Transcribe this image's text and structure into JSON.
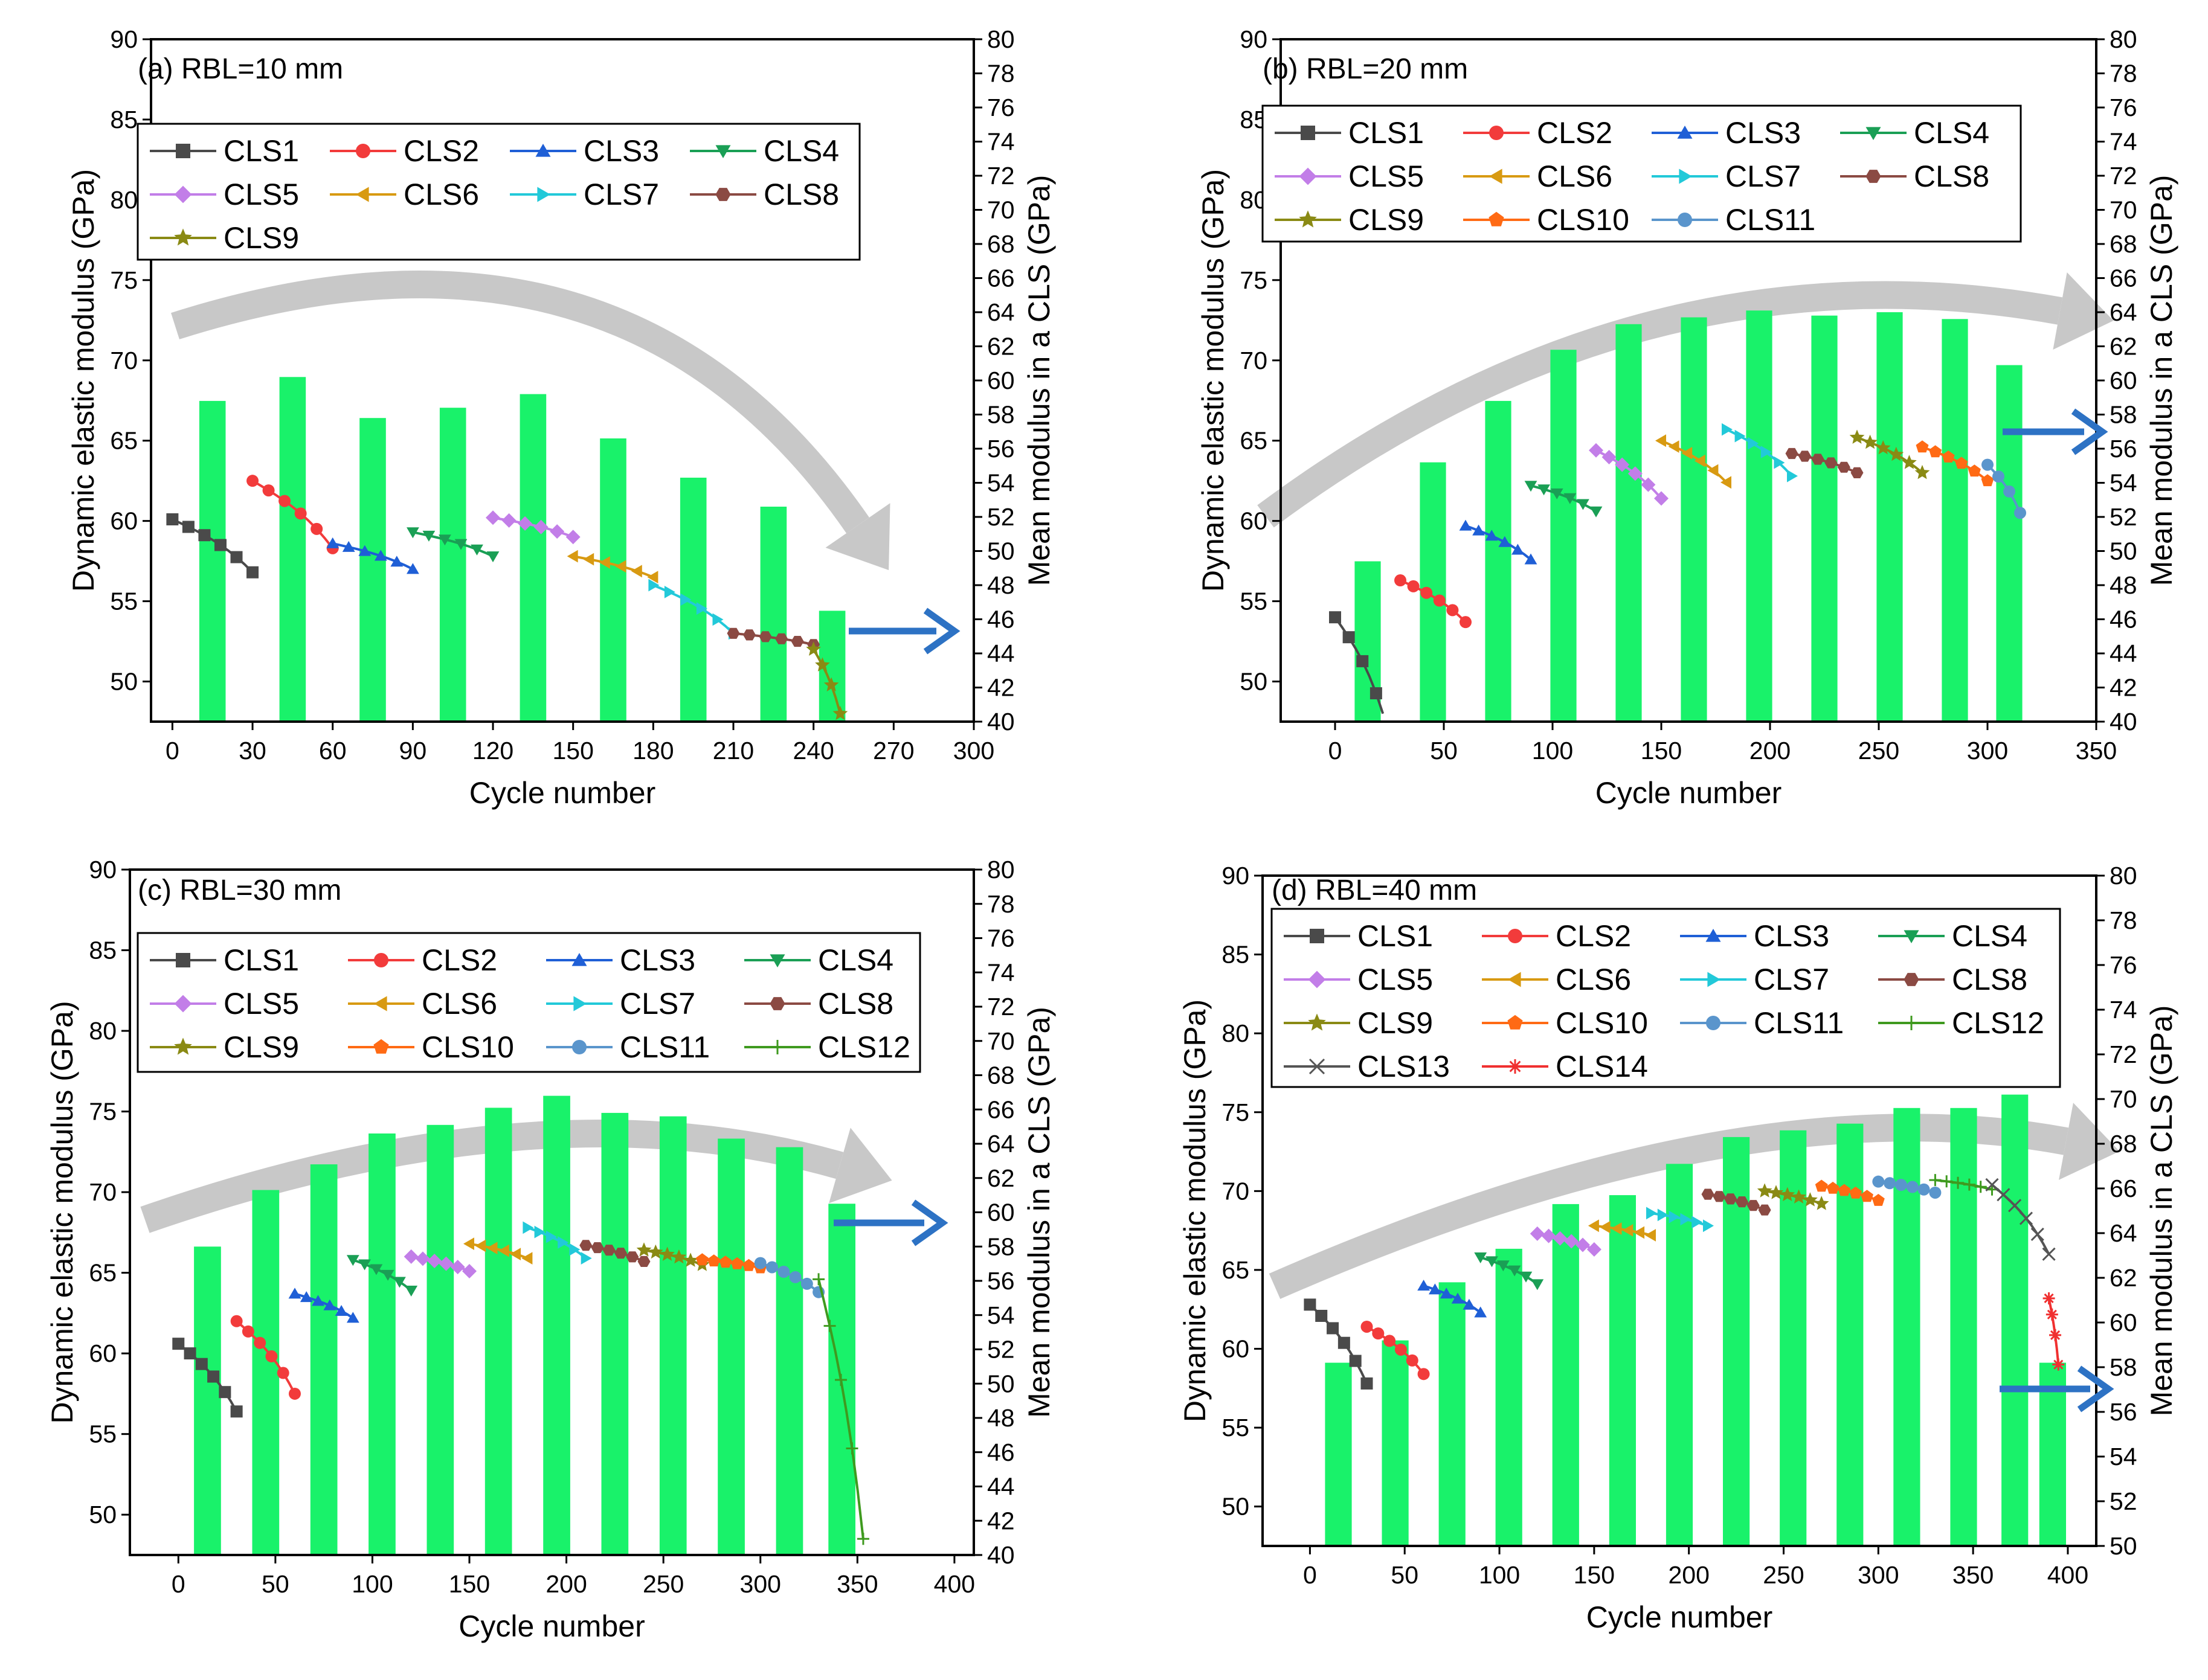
{
  "colors": {
    "bar": "#19F26A",
    "trend_arrow": "#C8C8C8",
    "axis_arrow": "#2D72C4",
    "series": [
      "#4a4a4a",
      "#f23b3b",
      "#1f5fd6",
      "#1a9f55",
      "#c27ee8",
      "#d89a12",
      "#22c9d9",
      "#8b4a43",
      "#8a8a14",
      "#ff6a14",
      "#5a95cc",
      "#3f9a1f",
      "#555555",
      "#f03030"
    ]
  },
  "charts": [
    {
      "title": "(a) RBL=10 mm",
      "xlabel": "Cycle number",
      "ylabel_left": "Dynamic elastic modulus (GPa)",
      "ylabel_right": "Mean modulus in a CLS (GPa)",
      "x_ticks": [
        "0",
        "30",
        "60",
        "90",
        "120",
        "150",
        "180",
        "210",
        "240",
        "270",
        "300"
      ],
      "y_left_ticks": [
        "50",
        "55",
        "60",
        "65",
        "70",
        "75",
        "80",
        "85",
        "90"
      ],
      "y_right_ticks": [
        "40",
        "42",
        "44",
        "46",
        "48",
        "50",
        "52",
        "54",
        "56",
        "58",
        "60",
        "62",
        "64",
        "66",
        "68",
        "70",
        "72",
        "74",
        "76",
        "78",
        "80"
      ],
      "legend": [
        "CLS1",
        "CLS2",
        "CLS3",
        "CLS4",
        "CLS5",
        "CLS6",
        "CLS7",
        "CLS8",
        "CLS9"
      ]
    },
    {
      "title": "(b) RBL=20 mm",
      "xlabel": "Cycle number",
      "ylabel_left": "Dynamic elastic modulus (GPa)",
      "ylabel_right": "Mean modulus in a CLS (GPa)",
      "x_ticks": [
        "0",
        "50",
        "100",
        "150",
        "200",
        "250",
        "300",
        "350"
      ],
      "y_left_ticks": [
        "50",
        "55",
        "60",
        "65",
        "70",
        "75",
        "80",
        "85",
        "90"
      ],
      "y_right_ticks": [
        "40",
        "42",
        "44",
        "46",
        "48",
        "50",
        "52",
        "54",
        "56",
        "58",
        "60",
        "62",
        "64",
        "66",
        "68",
        "70",
        "72",
        "74",
        "76",
        "78",
        "80"
      ],
      "legend": [
        "CLS1",
        "CLS2",
        "CLS3",
        "CLS4",
        "CLS5",
        "CLS6",
        "CLS7",
        "CLS8",
        "CLS9",
        "CLS10",
        "CLS11"
      ]
    },
    {
      "title": "(c) RBL=30 mm",
      "xlabel": "Cycle number",
      "ylabel_left": "Dynamic elastic modulus (GPa)",
      "ylabel_right": "Mean modulus in a CLS (GPa)",
      "x_ticks": [
        "0",
        "50",
        "100",
        "150",
        "200",
        "250",
        "300",
        "350",
        "400"
      ],
      "y_left_ticks": [
        "50",
        "55",
        "60",
        "65",
        "70",
        "75",
        "80",
        "85",
        "90"
      ],
      "y_right_ticks": [
        "40",
        "42",
        "44",
        "46",
        "48",
        "50",
        "52",
        "54",
        "56",
        "58",
        "60",
        "62",
        "64",
        "66",
        "68",
        "70",
        "72",
        "74",
        "76",
        "78",
        "80"
      ],
      "legend": [
        "CLS1",
        "CLS2",
        "CLS3",
        "CLS4",
        "CLS5",
        "CLS6",
        "CLS7",
        "CLS8",
        "CLS9",
        "CLS10",
        "CLS11",
        "CLS12"
      ]
    },
    {
      "title": "(d) RBL=40 mm",
      "xlabel": "Cycle number",
      "ylabel_left": "Dynamic elastic modulus (GPa)",
      "ylabel_right": "Mean modulus in a CLS (GPa)",
      "x_ticks": [
        "0",
        "50",
        "100",
        "150",
        "200",
        "250",
        "300",
        "350",
        "400"
      ],
      "y_left_ticks": [
        "50",
        "55",
        "60",
        "65",
        "70",
        "75",
        "80",
        "85",
        "90"
      ],
      "y_right_ticks": [
        "50",
        "52",
        "54",
        "56",
        "58",
        "60",
        "62",
        "64",
        "66",
        "68",
        "70",
        "72",
        "74",
        "76",
        "78",
        "80"
      ],
      "legend": [
        "CLS1",
        "CLS2",
        "CLS3",
        "CLS4",
        "CLS5",
        "CLS6",
        "CLS7",
        "CLS8",
        "CLS9",
        "CLS10",
        "CLS11",
        "CLS12",
        "CLS13",
        "CLS14"
      ]
    }
  ],
  "chart_data": [
    {
      "type": "bar",
      "title": "(a) RBL=10 mm",
      "xlabel": "Cycle number",
      "ylabel": "Dynamic elastic modulus (GPa)",
      "y2label": "Mean modulus in a CLS (GPa)",
      "xlim": [
        -8,
        300
      ],
      "ylim": [
        47.5,
        90
      ],
      "y2lim": [
        40,
        80
      ],
      "legend_placement": "top-left",
      "bars": {
        "x": [
          15,
          45,
          75,
          105,
          135,
          165,
          195,
          225,
          247
        ],
        "y2": [
          58.8,
          60.2,
          57.8,
          58.4,
          59.2,
          56.6,
          54.3,
          52.6,
          46.5
        ]
      },
      "series": [
        {
          "name": "CLS1",
          "x": [
            0,
            30
          ],
          "y": [
            60.1,
            56.8
          ]
        },
        {
          "name": "CLS2",
          "x": [
            30,
            60
          ],
          "y": [
            62.5,
            58.3
          ]
        },
        {
          "name": "CLS3",
          "x": [
            60,
            90
          ],
          "y": [
            58.6,
            57.0
          ]
        },
        {
          "name": "CLS4",
          "x": [
            90,
            120
          ],
          "y": [
            59.3,
            57.8
          ]
        },
        {
          "name": "CLS5",
          "x": [
            120,
            150
          ],
          "y": [
            60.2,
            59.0
          ]
        },
        {
          "name": "CLS6",
          "x": [
            150,
            180
          ],
          "y": [
            57.8,
            56.5
          ]
        },
        {
          "name": "CLS7",
          "x": [
            180,
            210
          ],
          "y": [
            56.0,
            53.0
          ]
        },
        {
          "name": "CLS8",
          "x": [
            210,
            240
          ],
          "y": [
            53.0,
            52.3
          ]
        },
        {
          "name": "CLS9",
          "x": [
            240,
            250
          ],
          "y": [
            52.0,
            48.0
          ]
        }
      ]
    },
    {
      "type": "bar",
      "title": "(b) RBL=20 mm",
      "xlabel": "Cycle number",
      "ylabel": "Dynamic elastic modulus (GPa)",
      "y2label": "Mean modulus in a CLS (GPa)",
      "xlim": [
        -25,
        350
      ],
      "ylim": [
        47.5,
        90
      ],
      "y2lim": [
        40,
        80
      ],
      "legend_placement": "top-left",
      "bars": {
        "x": [
          15,
          45,
          75,
          105,
          135,
          165,
          195,
          225,
          255,
          285,
          310
        ],
        "y2": [
          49.4,
          55.2,
          58.8,
          61.8,
          63.3,
          63.7,
          64.1,
          63.8,
          64.0,
          63.6,
          60.9
        ]
      },
      "series": [
        {
          "name": "CLS1",
          "x": [
            0,
            22
          ],
          "y": [
            54.0,
            48.0
          ]
        },
        {
          "name": "CLS2",
          "x": [
            30,
            60
          ],
          "y": [
            56.3,
            53.7
          ]
        },
        {
          "name": "CLS3",
          "x": [
            60,
            90
          ],
          "y": [
            59.7,
            57.6
          ]
        },
        {
          "name": "CLS4",
          "x": [
            90,
            120
          ],
          "y": [
            62.2,
            60.6
          ]
        },
        {
          "name": "CLS5",
          "x": [
            120,
            150
          ],
          "y": [
            64.4,
            61.4
          ]
        },
        {
          "name": "CLS6",
          "x": [
            150,
            180
          ],
          "y": [
            65.0,
            62.4
          ]
        },
        {
          "name": "CLS7",
          "x": [
            180,
            210
          ],
          "y": [
            65.7,
            62.8
          ]
        },
        {
          "name": "CLS8",
          "x": [
            210,
            240
          ],
          "y": [
            64.2,
            63.0
          ]
        },
        {
          "name": "CLS9",
          "x": [
            240,
            270
          ],
          "y": [
            65.2,
            63.0
          ]
        },
        {
          "name": "CLS10",
          "x": [
            270,
            300
          ],
          "y": [
            64.6,
            62.5
          ]
        },
        {
          "name": "CLS11",
          "x": [
            300,
            315
          ],
          "y": [
            63.5,
            60.5
          ]
        }
      ]
    },
    {
      "type": "bar",
      "title": "(c) RBL=30 mm",
      "xlabel": "Cycle number",
      "ylabel": "Dynamic elastic modulus (GPa)",
      "y2label": "Mean modulus in a CLS (GPa)",
      "xlim": [
        -25,
        410
      ],
      "ylim": [
        47.5,
        90
      ],
      "y2lim": [
        40,
        80
      ],
      "legend_placement": "top-left",
      "bars": {
        "x": [
          15,
          45,
          75,
          105,
          135,
          165,
          195,
          225,
          255,
          285,
          315,
          342
        ],
        "y2": [
          58.0,
          61.3,
          62.8,
          64.6,
          65.1,
          66.1,
          66.8,
          65.8,
          65.6,
          64.3,
          63.8,
          60.5
        ]
      },
      "series": [
        {
          "name": "CLS1",
          "x": [
            0,
            30
          ],
          "y": [
            60.6,
            56.4
          ]
        },
        {
          "name": "CLS2",
          "x": [
            30,
            60
          ],
          "y": [
            62.0,
            57.5
          ]
        },
        {
          "name": "CLS3",
          "x": [
            60,
            90
          ],
          "y": [
            63.7,
            62.2
          ]
        },
        {
          "name": "CLS4",
          "x": [
            90,
            120
          ],
          "y": [
            65.8,
            63.9
          ]
        },
        {
          "name": "CLS5",
          "x": [
            120,
            150
          ],
          "y": [
            66.0,
            65.1
          ]
        },
        {
          "name": "CLS6",
          "x": [
            150,
            180
          ],
          "y": [
            66.8,
            65.9
          ]
        },
        {
          "name": "CLS7",
          "x": [
            180,
            210
          ],
          "y": [
            67.8,
            65.9
          ]
        },
        {
          "name": "CLS8",
          "x": [
            210,
            240
          ],
          "y": [
            66.7,
            65.7
          ]
        },
        {
          "name": "CLS9",
          "x": [
            240,
            270
          ],
          "y": [
            66.4,
            65.5
          ]
        },
        {
          "name": "CLS10",
          "x": [
            270,
            300
          ],
          "y": [
            65.8,
            65.3
          ]
        },
        {
          "name": "CLS11",
          "x": [
            300,
            330
          ],
          "y": [
            65.6,
            63.8
          ]
        },
        {
          "name": "CLS12",
          "x": [
            330,
            353
          ],
          "y": [
            64.6,
            48.5
          ]
        }
      ]
    },
    {
      "type": "bar",
      "title": "(d) RBL=40 mm",
      "xlabel": "Cycle number",
      "ylabel": "Dynamic elastic modulus (GPa)",
      "y2label": "Mean modulus in a CLS (GPa)",
      "xlim": [
        -25,
        415
      ],
      "ylim": [
        47.5,
        90
      ],
      "y2lim": [
        50,
        80
      ],
      "legend_placement": "top-left",
      "bars": {
        "x": [
          15,
          45,
          75,
          105,
          135,
          165,
          195,
          225,
          255,
          285,
          315,
          345,
          372,
          392
        ],
        "y2": [
          58.2,
          59.2,
          61.8,
          63.3,
          65.3,
          65.7,
          67.1,
          68.3,
          68.6,
          68.9,
          69.6,
          69.6,
          70.2,
          58.2
        ]
      },
      "series": [
        {
          "name": "CLS1",
          "x": [
            0,
            30
          ],
          "y": [
            62.8,
            57.8
          ]
        },
        {
          "name": "CLS2",
          "x": [
            30,
            60
          ],
          "y": [
            61.4,
            58.4
          ]
        },
        {
          "name": "CLS3",
          "x": [
            60,
            90
          ],
          "y": [
            64.0,
            62.3
          ]
        },
        {
          "name": "CLS4",
          "x": [
            90,
            120
          ],
          "y": [
            65.8,
            64.1
          ]
        },
        {
          "name": "CLS5",
          "x": [
            120,
            150
          ],
          "y": [
            67.3,
            66.3
          ]
        },
        {
          "name": "CLS6",
          "x": [
            150,
            180
          ],
          "y": [
            67.8,
            67.2
          ]
        },
        {
          "name": "CLS7",
          "x": [
            180,
            210
          ],
          "y": [
            68.6,
            67.8
          ]
        },
        {
          "name": "CLS8",
          "x": [
            210,
            240
          ],
          "y": [
            69.8,
            68.8
          ]
        },
        {
          "name": "CLS9",
          "x": [
            240,
            270
          ],
          "y": [
            70.0,
            69.2
          ]
        },
        {
          "name": "CLS10",
          "x": [
            270,
            300
          ],
          "y": [
            70.3,
            69.4
          ]
        },
        {
          "name": "CLS11",
          "x": [
            300,
            330
          ],
          "y": [
            70.6,
            69.9
          ]
        },
        {
          "name": "CLS12",
          "x": [
            330,
            360
          ],
          "y": [
            70.7,
            70.1
          ]
        },
        {
          "name": "CLS13",
          "x": [
            360,
            390
          ],
          "y": [
            70.4,
            66.0
          ]
        },
        {
          "name": "CLS14",
          "x": [
            390,
            395
          ],
          "y": [
            63.2,
            59.0
          ]
        }
      ]
    }
  ]
}
